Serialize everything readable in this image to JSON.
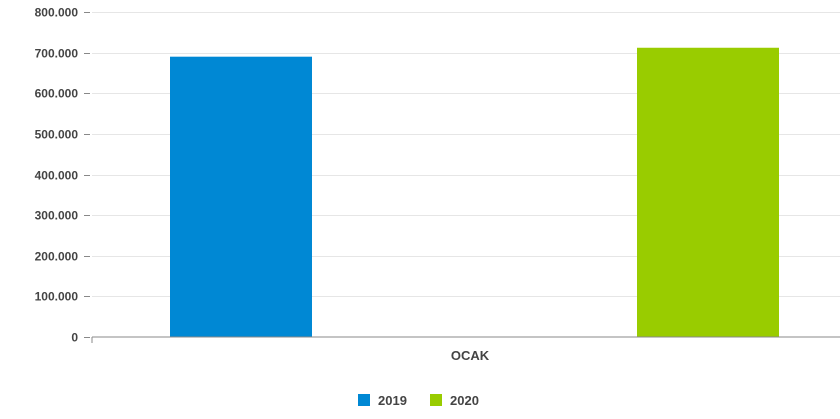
{
  "chart_data": {
    "type": "bar",
    "categories": [
      "OCAK"
    ],
    "series": [
      {
        "name": "2019",
        "values": [
          690000
        ],
        "color": "#0088D4"
      },
      {
        "name": "2020",
        "values": [
          712000
        ],
        "color": "#99CC00"
      }
    ],
    "yticks": [
      "0",
      "100.000",
      "200.000",
      "300.000",
      "400.000",
      "500.000",
      "600.000",
      "700.000",
      "800.000"
    ],
    "ytick_values": [
      0,
      100000,
      200000,
      300000,
      400000,
      500000,
      600000,
      700000,
      800000
    ],
    "ylim": [
      0,
      800000
    ],
    "grid": true,
    "legend_position": "bottom-center",
    "title": "",
    "xlabel": "",
    "ylabel": ""
  }
}
